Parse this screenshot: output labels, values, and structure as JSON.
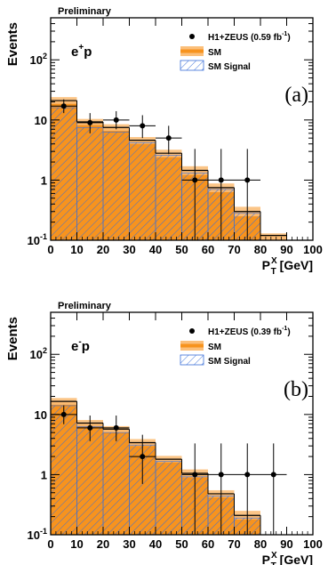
{
  "colors": {
    "sm_fill": "#f7931e",
    "sm_band": "#fbbf7a",
    "signal_hatch": "#3a6fd8",
    "data_marker": "#000000",
    "axis": "#000000",
    "background": "#ffffff"
  },
  "chart_data": [
    {
      "type": "bar",
      "panel_label": "(a)",
      "status": "Preliminary",
      "process": "e",
      "process_charge": "+",
      "process_suffix": "p",
      "xlabel": "P",
      "xlabel_sup": "X",
      "xlabel_sub": "T",
      "xlabel_unit": "[GeV]",
      "ylabel": "Events",
      "xlim": [
        0,
        100
      ],
      "ylim": [
        0.1,
        500
      ],
      "yscale": "log",
      "grid": false,
      "legend_position": "top-right",
      "x_ticks": [
        "0",
        "10",
        "20",
        "30",
        "40",
        "50",
        "60",
        "70",
        "80",
        "90",
        "100"
      ],
      "y_ticks": [
        {
          "value": 0.1,
          "base": "10",
          "exp": "-1"
        },
        {
          "value": 1,
          "label": "1"
        },
        {
          "value": 10,
          "label": "10"
        },
        {
          "value": 100,
          "base": "10",
          "exp": "2"
        }
      ],
      "bin_edges": [
        0,
        10,
        20,
        30,
        40,
        50,
        60,
        70,
        80,
        90,
        100
      ],
      "series": [
        {
          "name": "H1+ZEUS (0.59 fb",
          "name_sup": "-1",
          "name_close": ")",
          "kind": "data",
          "x": [
            5,
            15,
            25,
            35,
            45,
            55,
            65,
            75
          ],
          "values": [
            17,
            9,
            10,
            8,
            5,
            1,
            1,
            1
          ],
          "err_low": [
            4,
            3,
            3,
            3,
            2.3,
            0.99,
            0.99,
            0.99
          ],
          "err_high": [
            5,
            4,
            4,
            4,
            3,
            2.3,
            2.3,
            2.3
          ],
          "x_err": [
            5,
            5,
            5,
            5,
            5,
            5,
            5,
            5
          ]
        },
        {
          "name": "SM",
          "kind": "sm",
          "values": [
            21,
            9.3,
            7.5,
            4.6,
            2.8,
            1.45,
            0.75,
            0.3,
            0.12,
            0.1
          ],
          "band_low": [
            18.5,
            8.2,
            6.6,
            4.0,
            2.4,
            1.22,
            0.63,
            0.25,
            0.1,
            0.1
          ],
          "band_high": [
            24,
            10.4,
            8.5,
            5.2,
            3.2,
            1.7,
            0.88,
            0.36,
            0.13,
            0.1
          ]
        },
        {
          "name": "SM Signal",
          "kind": "signal",
          "values": [
            16,
            7.5,
            6.3,
            4.2,
            2.6,
            1.3,
            0.7,
            0.28,
            0.1,
            0.1
          ]
        }
      ]
    },
    {
      "type": "bar",
      "panel_label": "(b)",
      "status": "Preliminary",
      "process": "e",
      "process_charge": "-",
      "process_suffix": "p",
      "xlabel": "P",
      "xlabel_sup": "X",
      "xlabel_sub": "T",
      "xlabel_unit": "[GeV]",
      "ylabel": "Events",
      "xlim": [
        0,
        100
      ],
      "ylim": [
        0.1,
        500
      ],
      "yscale": "log",
      "grid": false,
      "legend_position": "top-right",
      "x_ticks": [
        "0",
        "10",
        "20",
        "30",
        "40",
        "50",
        "60",
        "70",
        "80",
        "90",
        "100"
      ],
      "y_ticks": [
        {
          "value": 0.1,
          "base": "10",
          "exp": "-1"
        },
        {
          "value": 1,
          "label": "1"
        },
        {
          "value": 10,
          "label": "10"
        },
        {
          "value": 100,
          "base": "10",
          "exp": "2"
        }
      ],
      "bin_edges": [
        0,
        10,
        20,
        30,
        40,
        50,
        60,
        70,
        80,
        90,
        100
      ],
      "series": [
        {
          "name": "H1+ZEUS (0.39 fb",
          "name_sup": "-1",
          "name_close": ")",
          "kind": "data",
          "x": [
            5,
            15,
            25,
            35,
            55,
            65,
            75,
            85
          ],
          "values": [
            10,
            6,
            6,
            2,
            1,
            1,
            1,
            1
          ],
          "err_low": [
            3.1,
            2.4,
            2.4,
            1.3,
            0.99,
            0.99,
            0.99,
            0.99
          ],
          "err_high": [
            4.2,
            3.6,
            3.6,
            2.6,
            2.3,
            2.3,
            2.3,
            2.3
          ],
          "x_err": [
            5,
            5,
            5,
            5,
            5,
            5,
            5,
            5
          ]
        },
        {
          "name": "SM",
          "kind": "sm",
          "values": [
            16.5,
            7.2,
            5.7,
            3.4,
            1.8,
            1.05,
            0.48,
            0.21,
            0.1,
            0.1
          ],
          "band_low": [
            14.5,
            6.4,
            5.0,
            3.0,
            1.6,
            0.9,
            0.42,
            0.18,
            0.1,
            0.1
          ],
          "band_high": [
            18.8,
            8.1,
            6.4,
            3.9,
            2.05,
            1.22,
            0.55,
            0.25,
            0.1,
            0.1
          ]
        },
        {
          "name": "SM Signal",
          "kind": "signal",
          "values": [
            14,
            6.3,
            5.0,
            3.1,
            1.65,
            0.92,
            0.44,
            0.19,
            0.1,
            0.1
          ]
        }
      ]
    }
  ]
}
